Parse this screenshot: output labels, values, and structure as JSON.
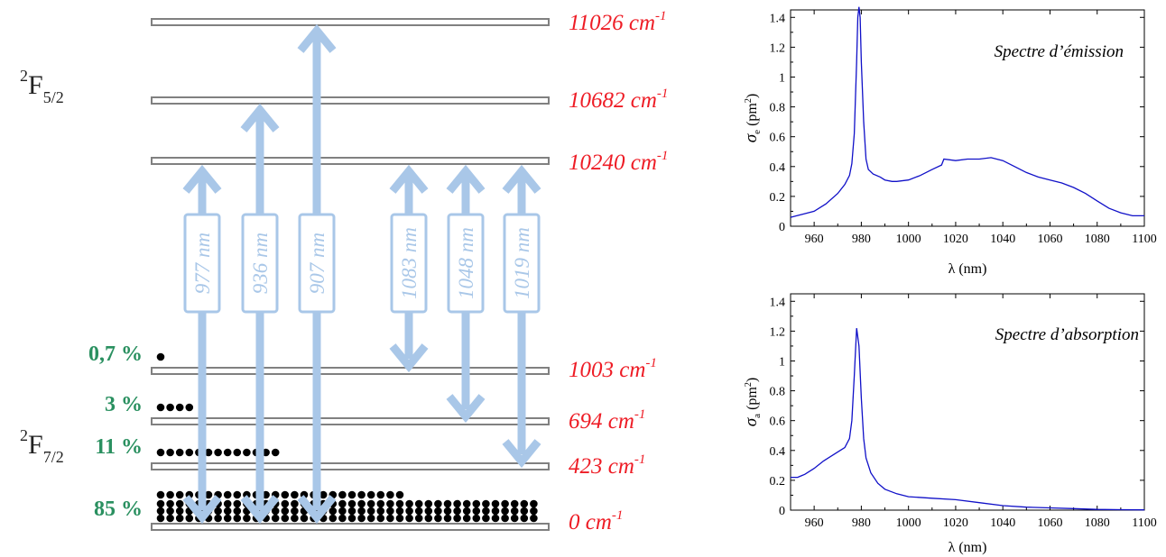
{
  "diagram": {
    "upper_term": {
      "base": "F",
      "sup": "2",
      "sub": "5/2"
    },
    "lower_term": {
      "base": "F",
      "sup": "2",
      "sub": "7/2"
    },
    "levels": [
      {
        "name": "level-11026",
        "energy": "11026 cm",
        "unit_sup": "-1"
      },
      {
        "name": "level-10682",
        "energy": "10682 cm",
        "unit_sup": "-1"
      },
      {
        "name": "level-10240",
        "energy": "10240 cm",
        "unit_sup": "-1"
      },
      {
        "name": "level-1003",
        "energy": "1003 cm",
        "unit_sup": "-1"
      },
      {
        "name": "level-694",
        "energy": "694 cm",
        "unit_sup": "-1"
      },
      {
        "name": "level-423",
        "energy": "423 cm",
        "unit_sup": "-1"
      },
      {
        "name": "level-0",
        "energy": "0 cm",
        "unit_sup": "-1"
      }
    ],
    "populations": [
      "0,7 %",
      "3 %",
      "11 %",
      "85 %"
    ],
    "population_dots": [
      1,
      4,
      13,
      34
    ],
    "transitions": [
      "977 nm",
      "936 nm",
      "907 nm",
      "1083 nm",
      "1048 nm",
      "1019 nm"
    ],
    "colors": {
      "energy": "#ee1c25",
      "population": "#2a9060",
      "arrow": "#a9c7e8"
    }
  },
  "chart_data": [
    {
      "type": "line",
      "title": "Spectre d’émission",
      "xlabel": "λ (nm)",
      "ylabel": {
        "symbol": "σ",
        "sub": "e",
        "unit": " (pm",
        "unit_sup": "2",
        "unit_end": ")"
      },
      "xlim": [
        950,
        1100
      ],
      "ylim": [
        0,
        1.45
      ],
      "xticks": [
        "960",
        "980",
        "1000",
        "1020",
        "1040",
        "1060",
        "1080",
        "1100"
      ],
      "yticks": [
        "0",
        "0.2",
        "0.4",
        "0.6",
        "0.8",
        "1",
        "1.2",
        "1.4"
      ],
      "series": [
        {
          "x": [
            950,
            955,
            960,
            965,
            970,
            973,
            975,
            976,
            977,
            978,
            978.5,
            979,
            979.5,
            980,
            981,
            982,
            983,
            985,
            988,
            990,
            993,
            995,
            1000,
            1005,
            1010,
            1014,
            1015,
            1020,
            1025,
            1030,
            1035,
            1040,
            1045,
            1050,
            1055,
            1060,
            1065,
            1070,
            1075,
            1080,
            1085,
            1090,
            1095,
            1100
          ],
          "y": [
            0.06,
            0.08,
            0.1,
            0.15,
            0.22,
            0.28,
            0.34,
            0.42,
            0.62,
            1.1,
            1.4,
            1.47,
            1.4,
            1.1,
            0.7,
            0.45,
            0.38,
            0.35,
            0.33,
            0.31,
            0.3,
            0.3,
            0.31,
            0.34,
            0.38,
            0.41,
            0.45,
            0.44,
            0.45,
            0.45,
            0.46,
            0.44,
            0.4,
            0.36,
            0.33,
            0.31,
            0.29,
            0.26,
            0.22,
            0.17,
            0.12,
            0.09,
            0.07,
            0.07
          ]
        }
      ]
    },
    {
      "type": "line",
      "title": "Spectre d’absorption",
      "xlabel": "λ (nm)",
      "ylabel": {
        "symbol": "σ",
        "sub": "a",
        "unit": " (pm",
        "unit_sup": "2",
        "unit_end": ")"
      },
      "xlim": [
        950,
        1100
      ],
      "ylim": [
        0,
        1.45
      ],
      "xticks": [
        "960",
        "980",
        "1000",
        "1020",
        "1040",
        "1060",
        "1080",
        "1100"
      ],
      "yticks": [
        "0",
        "0.2",
        "0.4",
        "0.6",
        "0.8",
        "1",
        "1.2",
        "1.4"
      ],
      "series": [
        {
          "x": [
            950,
            953,
            956,
            960,
            964,
            968,
            971,
            973,
            975,
            976,
            977,
            978,
            979,
            980,
            981,
            982,
            984,
            987,
            990,
            995,
            1000,
            1010,
            1020,
            1030,
            1040,
            1050,
            1060,
            1070,
            1080,
            1090,
            1100
          ],
          "y": [
            0.22,
            0.22,
            0.24,
            0.28,
            0.33,
            0.37,
            0.4,
            0.42,
            0.48,
            0.6,
            0.9,
            1.22,
            1.1,
            0.75,
            0.48,
            0.35,
            0.25,
            0.18,
            0.14,
            0.11,
            0.09,
            0.08,
            0.07,
            0.05,
            0.03,
            0.02,
            0.015,
            0.01,
            0.005,
            0.003,
            0.002
          ]
        }
      ]
    }
  ]
}
